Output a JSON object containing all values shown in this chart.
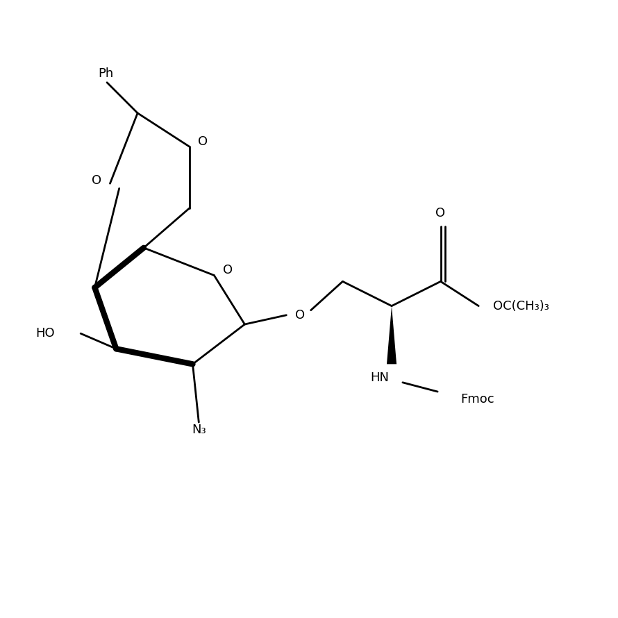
{
  "bg_color": "#ffffff",
  "line_color": "#000000",
  "lw": 2.0,
  "blw": 6.0,
  "figsize": [
    8.9,
    8.9
  ],
  "dpi": 100,
  "xlim": [
    0,
    10
  ],
  "ylim": [
    0,
    10
  ]
}
